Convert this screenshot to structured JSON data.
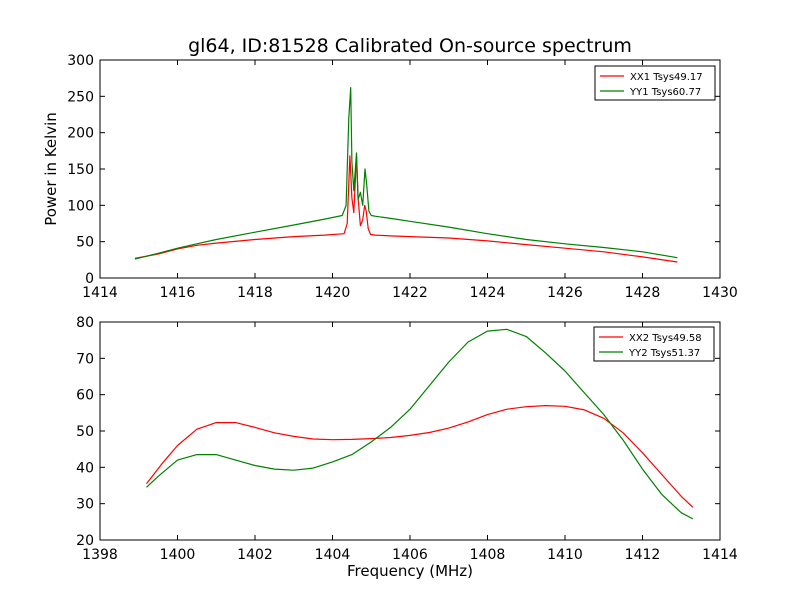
{
  "title": "gl64, ID:81528 Calibrated On-source spectrum",
  "chart_data": [
    {
      "type": "line",
      "ylabel": "Power in Kelvin",
      "xlabel": "",
      "xlim": [
        1414,
        1430
      ],
      "ylim": [
        0,
        300
      ],
      "xticks": [
        1414,
        1416,
        1418,
        1420,
        1422,
        1424,
        1426,
        1428,
        1430
      ],
      "yticks": [
        0,
        50,
        100,
        150,
        200,
        250,
        300
      ],
      "legend_position": "top-right",
      "series": [
        {
          "name": "XX1 Tsys49.17",
          "color": "#ff0000",
          "x": [
            1414.9,
            1415.5,
            1416.0,
            1416.5,
            1417.0,
            1418.0,
            1419.0,
            1419.8,
            1420.3,
            1420.38,
            1420.45,
            1420.5,
            1420.55,
            1420.62,
            1420.66,
            1420.72,
            1420.78,
            1420.83,
            1420.87,
            1420.92,
            1420.98,
            1421.1,
            1421.5,
            1422.0,
            1423.0,
            1424.0,
            1425.0,
            1426.0,
            1427.0,
            1428.0,
            1428.9
          ],
          "y": [
            27,
            33,
            40,
            45,
            48,
            53,
            57,
            59,
            61,
            75,
            168,
            110,
            90,
            168,
            110,
            72,
            80,
            100,
            92,
            68,
            60,
            59,
            58,
            57,
            55,
            51,
            46,
            41,
            36,
            29,
            22
          ]
        },
        {
          "name": "YY1 Tsys60.77",
          "color": "#008000",
          "x": [
            1414.9,
            1415.5,
            1416.0,
            1416.5,
            1417.0,
            1418.0,
            1419.0,
            1419.8,
            1420.25,
            1420.35,
            1420.42,
            1420.47,
            1420.5,
            1420.55,
            1420.62,
            1420.66,
            1420.72,
            1420.78,
            1420.84,
            1420.88,
            1420.94,
            1421.0,
            1421.1,
            1421.5,
            1422.0,
            1423.0,
            1424.0,
            1425.0,
            1426.0,
            1427.0,
            1428.0,
            1428.9
          ],
          "y": [
            26,
            34,
            41,
            47,
            53,
            63,
            73,
            81,
            86,
            100,
            220,
            262,
            160,
            120,
            172,
            108,
            118,
            100,
            150,
            130,
            92,
            86,
            85,
            82,
            78,
            70,
            61,
            53,
            47,
            42,
            36,
            28
          ]
        }
      ]
    },
    {
      "type": "line",
      "xlabel": "Frequency (MHz)",
      "ylabel": "",
      "xlim": [
        1398,
        1414
      ],
      "ylim": [
        20,
        80
      ],
      "xticks": [
        1398,
        1400,
        1402,
        1404,
        1406,
        1408,
        1410,
        1412,
        1414
      ],
      "yticks": [
        20,
        30,
        40,
        50,
        60,
        70,
        80
      ],
      "legend_position": "top-right",
      "series": [
        {
          "name": "XX2 Tsys49.58",
          "color": "#ff0000",
          "x": [
            1399.2,
            1399.6,
            1400.0,
            1400.5,
            1401.0,
            1401.5,
            1402.0,
            1402.5,
            1403.0,
            1403.5,
            1404.0,
            1404.5,
            1405.0,
            1405.5,
            1406.0,
            1406.5,
            1407.0,
            1407.5,
            1408.0,
            1408.5,
            1409.0,
            1409.5,
            1410.0,
            1410.5,
            1411.0,
            1411.5,
            1412.0,
            1412.5,
            1413.0,
            1413.3
          ],
          "y": [
            35.5,
            41,
            46,
            50.5,
            52.3,
            52.3,
            51,
            49.5,
            48.5,
            47.8,
            47.6,
            47.7,
            47.9,
            48.2,
            48.8,
            49.6,
            50.8,
            52.5,
            54.5,
            56,
            56.7,
            57,
            56.8,
            55.8,
            53.5,
            49.5,
            44,
            38,
            32,
            29
          ]
        },
        {
          "name": "YY2 Tsys51.37",
          "color": "#008000",
          "x": [
            1399.2,
            1399.5,
            1400.0,
            1400.5,
            1401.0,
            1401.5,
            1402.0,
            1402.5,
            1403.0,
            1403.5,
            1404.0,
            1404.5,
            1405.0,
            1405.5,
            1406.0,
            1406.5,
            1407.0,
            1407.5,
            1408.0,
            1408.5,
            1409.0,
            1409.5,
            1410.0,
            1410.5,
            1411.0,
            1411.5,
            1412.0,
            1412.5,
            1413.0,
            1413.3
          ],
          "y": [
            34.5,
            37.5,
            42,
            43.5,
            43.5,
            42,
            40.5,
            39.5,
            39.2,
            39.8,
            41.5,
            43.5,
            47,
            51,
            56,
            62.5,
            69,
            74.5,
            77.5,
            78,
            76,
            71.5,
            66.5,
            60.5,
            54.5,
            47.5,
            39.5,
            32.5,
            27.5,
            25.8
          ]
        }
      ]
    }
  ]
}
